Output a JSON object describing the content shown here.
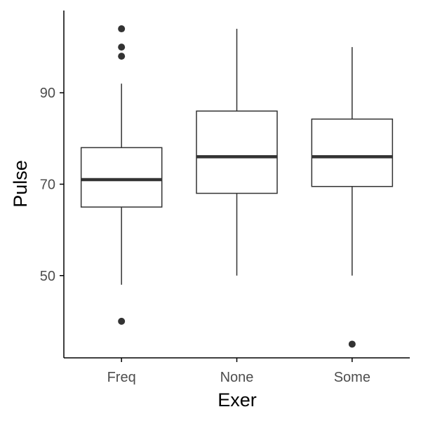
{
  "chart_data": {
    "type": "boxplot",
    "title": "",
    "xlabel": "Exer",
    "ylabel": "Pulse",
    "ylim": [
      32,
      108
    ],
    "yticks": [
      50,
      70,
      90
    ],
    "categories": [
      "Freq",
      "None",
      "Some"
    ],
    "boxes": [
      {
        "category": "Freq",
        "whisker_low": 48,
        "q1": 65,
        "median": 71,
        "q3": 78,
        "whisker_high": 92,
        "outliers": [
          40,
          98,
          100,
          104
        ]
      },
      {
        "category": "None",
        "whisker_low": 50,
        "q1": 68,
        "median": 76,
        "q3": 86,
        "whisker_high": 104,
        "outliers": []
      },
      {
        "category": "Some",
        "whisker_low": 50,
        "q1": 69.5,
        "median": 76,
        "q3": 84.25,
        "whisker_high": 100,
        "outliers": [
          35
        ]
      }
    ],
    "grid": false,
    "legend": "none",
    "colors": {
      "box_fill": "#ffffff",
      "line": "#333333",
      "outlier": "#333333",
      "axis": "#000000"
    }
  }
}
